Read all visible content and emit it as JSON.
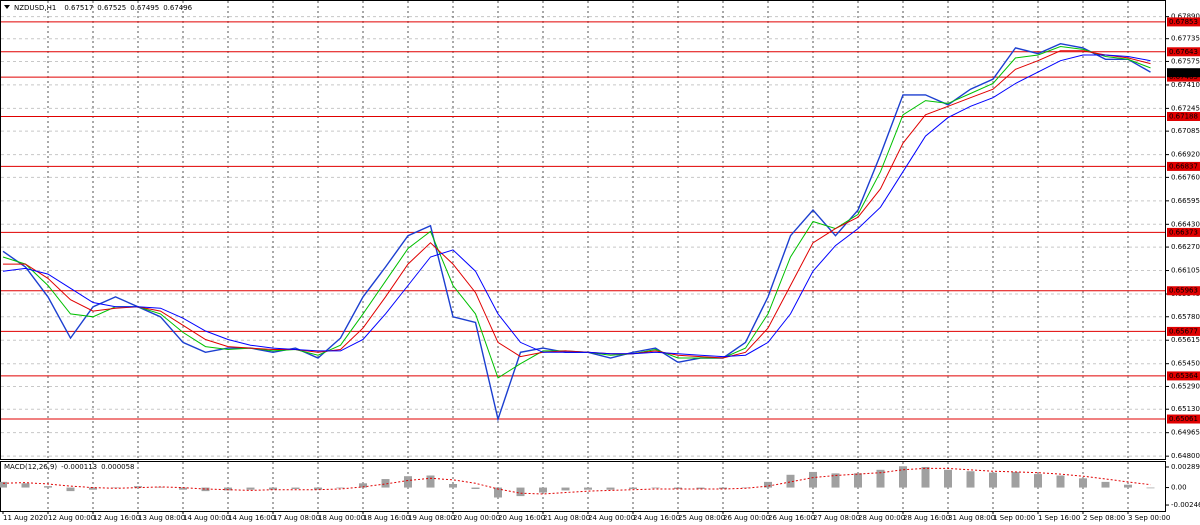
{
  "chart_data": [
    {
      "type": "line",
      "title": "NZDUSD,H1",
      "ohlc": [
        0.67517,
        0.67525,
        0.67495,
        0.67496
      ],
      "series": [
        {
          "color": "#1c3fd0",
          "values": [
            0.6624,
            0.6613,
            0.6592,
            0.6563,
            0.6585,
            0.6592,
            0.6585,
            0.6578,
            0.656,
            0.6553,
            0.6556,
            0.6556,
            0.6553,
            0.6556,
            0.6549,
            0.6563,
            0.6592,
            0.6613,
            0.6635,
            0.6642,
            0.6578,
            0.6574,
            0.6506,
            0.6553,
            0.6556,
            0.6553,
            0.6553,
            0.6549,
            0.6553,
            0.6556,
            0.6546,
            0.6549,
            0.6549,
            0.656,
            0.6592,
            0.6635,
            0.6653,
            0.6635,
            0.6653,
            0.6692,
            0.6734,
            0.6734,
            0.6727,
            0.6738,
            0.6745,
            0.6767,
            0.6763,
            0.677,
            0.6767,
            0.6759,
            0.6759,
            0.675
          ]
        },
        {
          "color": "#00c000",
          "values": [
            0.662,
            0.6615,
            0.66,
            0.658,
            0.6578,
            0.6585,
            0.6585,
            0.658,
            0.6567,
            0.6557,
            0.6555,
            0.6556,
            0.6554,
            0.6555,
            0.6551,
            0.6558,
            0.658,
            0.6603,
            0.6626,
            0.6638,
            0.66,
            0.658,
            0.6535,
            0.6545,
            0.6554,
            0.6554,
            0.6553,
            0.6551,
            0.6552,
            0.6555,
            0.6549,
            0.6549,
            0.6549,
            0.6556,
            0.658,
            0.662,
            0.6645,
            0.664,
            0.665,
            0.668,
            0.672,
            0.673,
            0.6728,
            0.6735,
            0.6742,
            0.676,
            0.6762,
            0.6768,
            0.6766,
            0.6761,
            0.6759,
            0.6753
          ]
        },
        {
          "color": "#e00000",
          "values": [
            0.6615,
            0.6615,
            0.6605,
            0.659,
            0.6582,
            0.6584,
            0.6585,
            0.6582,
            0.6572,
            0.6562,
            0.6557,
            0.6556,
            0.6555,
            0.6555,
            0.6553,
            0.6555,
            0.657,
            0.6592,
            0.6615,
            0.663,
            0.6615,
            0.6595,
            0.656,
            0.655,
            0.6553,
            0.6554,
            0.6553,
            0.6552,
            0.6552,
            0.6554,
            0.6551,
            0.655,
            0.6549,
            0.6553,
            0.657,
            0.66,
            0.663,
            0.664,
            0.6648,
            0.6668,
            0.67,
            0.672,
            0.6726,
            0.6732,
            0.6738,
            0.6752,
            0.6758,
            0.6765,
            0.6765,
            0.6762,
            0.676,
            0.6756
          ]
        },
        {
          "color": "#0000ff",
          "values": [
            0.661,
            0.6612,
            0.6608,
            0.6598,
            0.6588,
            0.6585,
            0.6585,
            0.6584,
            0.6577,
            0.6568,
            0.6562,
            0.6558,
            0.6556,
            0.6555,
            0.6554,
            0.6554,
            0.6562,
            0.658,
            0.66,
            0.662,
            0.6625,
            0.661,
            0.658,
            0.656,
            0.6553,
            0.6553,
            0.6553,
            0.6552,
            0.6552,
            0.6553,
            0.6552,
            0.6551,
            0.655,
            0.6551,
            0.656,
            0.658,
            0.661,
            0.6628,
            0.664,
            0.6655,
            0.668,
            0.6705,
            0.6718,
            0.6726,
            0.6732,
            0.6742,
            0.675,
            0.6758,
            0.6762,
            0.6762,
            0.6761,
            0.6758
          ]
        }
      ],
      "ylim": [
        0.6478,
        0.68
      ],
      "yticks": [
        {
          "value": 0.6789,
          "label": "0.67890"
        },
        0.67735,
        0.67575,
        {
          "value": 0.6741,
          "label": "0.67410"
        },
        0.67245,
        0.67085,
        {
          "value": 0.6692,
          "label": "0.66920"
        },
        {
          "value": 0.6676,
          "label": "0.66760"
        },
        0.66595,
        {
          "value": 0.6643,
          "label": "0.66430"
        },
        {
          "value": 0.6627,
          "label": "0.66270"
        },
        0.66105,
        {
          "value": 0.6594,
          "label": "0.65940"
        },
        {
          "value": 0.6578,
          "label": "0.65780"
        },
        0.65615,
        {
          "value": 0.6545,
          "label": "0.65450"
        },
        {
          "value": 0.6529,
          "label": "0.65290"
        },
        {
          "value": 0.6513,
          "label": "0.65130"
        },
        0.64965,
        {
          "value": 0.648,
          "label": "0.64800"
        }
      ],
      "levels": [
        0.67853,
        0.67643,
        0.67465,
        0.67188,
        0.66837,
        0.66373,
        0.65963,
        0.65677,
        0.65364,
        0.65061
      ],
      "level_color": "#e00000",
      "grid": true,
      "x_labels": [
        "11 Aug 2020",
        "12 Aug 00:00",
        "12 Aug 16:00",
        "13 Aug 08:00",
        "14 Aug 00:00",
        "14 Aug 16:00",
        "17 Aug 08:00",
        "18 Aug 00:00",
        "18 Aug 16:00",
        "19 Aug 08:00",
        "20 Aug 00:00",
        "20 Aug 16:00",
        "21 Aug 08:00",
        "24 Aug 00:00",
        "24 Aug 16:00",
        "25 Aug 08:00",
        "26 Aug 00:00",
        "26 Aug 16:00",
        "27 Aug 08:00",
        "28 Aug 00:00",
        "28 Aug 16:00",
        "31 Aug 08:00",
        "1 Sep 00:00",
        "1 Sep 16:00",
        "2 Sep 08:00",
        "3 Sep 00:00"
      ]
    },
    {
      "type": "macd",
      "title": "MACD(12,26,9)",
      "values": [
        -0.000113,
        5.8e-05
      ],
      "histogram": [
        0.0008,
        0.0006,
        0.0002,
        -0.0005,
        -0.0003,
        0.0,
        0.0002,
        0.0001,
        -0.0003,
        -0.0005,
        -0.0004,
        -0.0003,
        -0.0003,
        -0.0002,
        -0.0003,
        -0.0001,
        0.0006,
        0.0012,
        0.0016,
        0.0017,
        0.0005,
        -0.0002,
        -0.0014,
        -0.0012,
        -0.0007,
        -0.0004,
        -0.0003,
        -0.0003,
        -0.0002,
        -0.0001,
        -0.0002,
        -0.0002,
        -0.0002,
        0.0,
        0.0008,
        0.0018,
        0.0022,
        0.002,
        0.002,
        0.0025,
        0.003,
        0.0029,
        0.0025,
        0.0023,
        0.0021,
        0.0022,
        0.0019,
        0.0017,
        0.0013,
        0.0008,
        0.0004,
        -0.0001
      ],
      "signal": [
        0.0006,
        0.0007,
        0.0005,
        0.0002,
        0.0,
        -0.0001,
        0.0,
        0.0001,
        0.0,
        -0.0002,
        -0.0003,
        -0.0004,
        -0.0003,
        -0.0003,
        -0.0003,
        -0.0002,
        0.0001,
        0.0005,
        0.001,
        0.0013,
        0.0011,
        0.0006,
        -0.0002,
        -0.0008,
        -0.0009,
        -0.0007,
        -0.0005,
        -0.0004,
        -0.0003,
        -0.0002,
        -0.0002,
        -0.0002,
        -0.0002,
        -0.0001,
        0.0002,
        0.0008,
        0.0014,
        0.0017,
        0.0019,
        0.0021,
        0.0025,
        0.0027,
        0.0027,
        0.0025,
        0.0023,
        0.0022,
        0.0021,
        0.0019,
        0.0016,
        0.0012,
        0.0008,
        0.0004
      ],
      "histogram_color": "#a0a0a0",
      "signal_color": "#e00000",
      "ylim": [
        -0.0033,
        0.0036
      ],
      "yticks": [
        0.002898,
        {
          "value": 0,
          "label": "0.00"
        },
        -0.00246
      ]
    }
  ]
}
